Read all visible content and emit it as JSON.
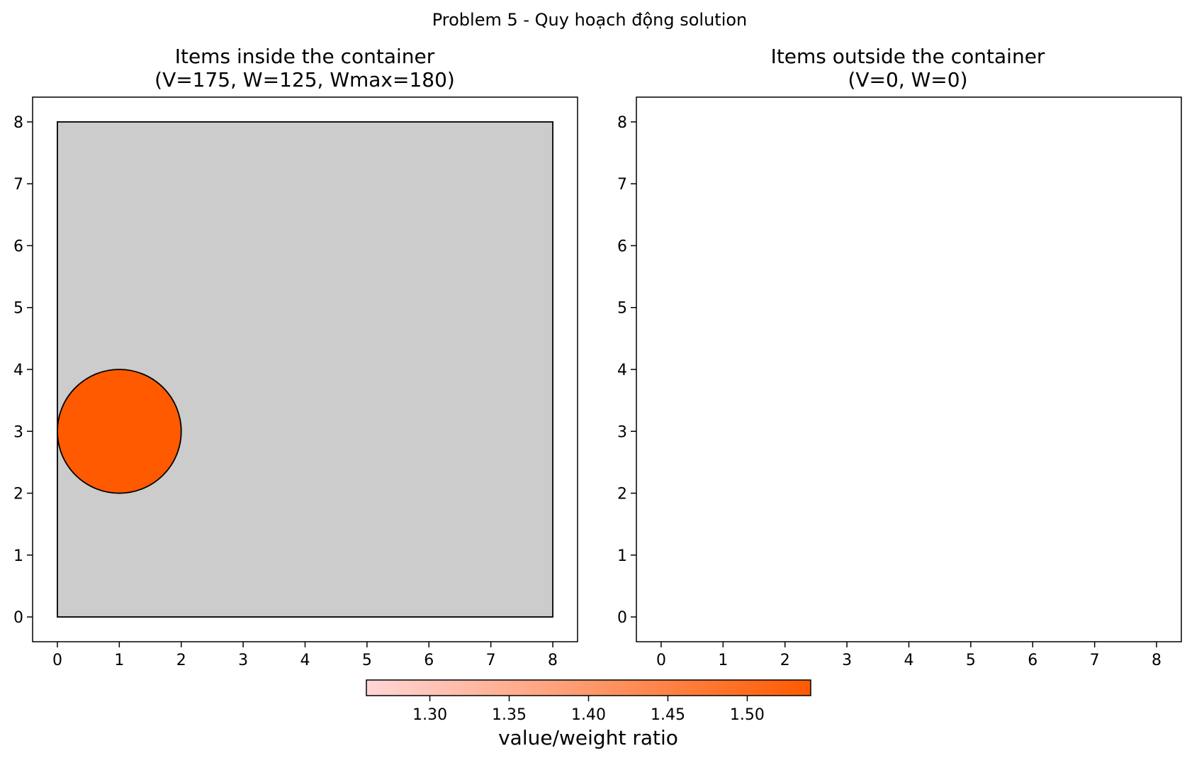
{
  "figure_title": "Problem 5 - Quy hoạch động solution",
  "chart_data": [
    {
      "type": "scatter",
      "title_line1": "Items inside the container",
      "title_line2": "(V=175, W=125, Wmax=180)",
      "xlim": [
        -0.4,
        8.4
      ],
      "ylim": [
        -0.4,
        8.4
      ],
      "xticks": [
        0,
        1,
        2,
        3,
        4,
        5,
        6,
        7,
        8
      ],
      "yticks": [
        0,
        1,
        2,
        3,
        4,
        5,
        6,
        7,
        8
      ],
      "grid": false,
      "container": {
        "x": [
          0,
          8
        ],
        "y": [
          0,
          8
        ],
        "color": "#cccccc"
      },
      "items": [
        {
          "shape": "circle",
          "cx": 1,
          "cy": 3,
          "r": 1,
          "color": "#ff5a00"
        }
      ]
    },
    {
      "type": "scatter",
      "title_line1": "Items outside the container",
      "title_line2": "(V=0, W=0)",
      "xlim": [
        -0.4,
        8.4
      ],
      "ylim": [
        -0.4,
        8.4
      ],
      "xticks": [
        0,
        1,
        2,
        3,
        4,
        5,
        6,
        7,
        8
      ],
      "yticks": [
        0,
        1,
        2,
        3,
        4,
        5,
        6,
        7,
        8
      ],
      "grid": false,
      "items": []
    }
  ],
  "colorbar": {
    "label": "value/weight ratio",
    "range": [
      1.26,
      1.54
    ],
    "ticks": [
      "1.30",
      "1.35",
      "1.40",
      "1.45",
      "1.50"
    ],
    "color_low": "#ffd6d6",
    "color_high": "#ff5a00"
  }
}
